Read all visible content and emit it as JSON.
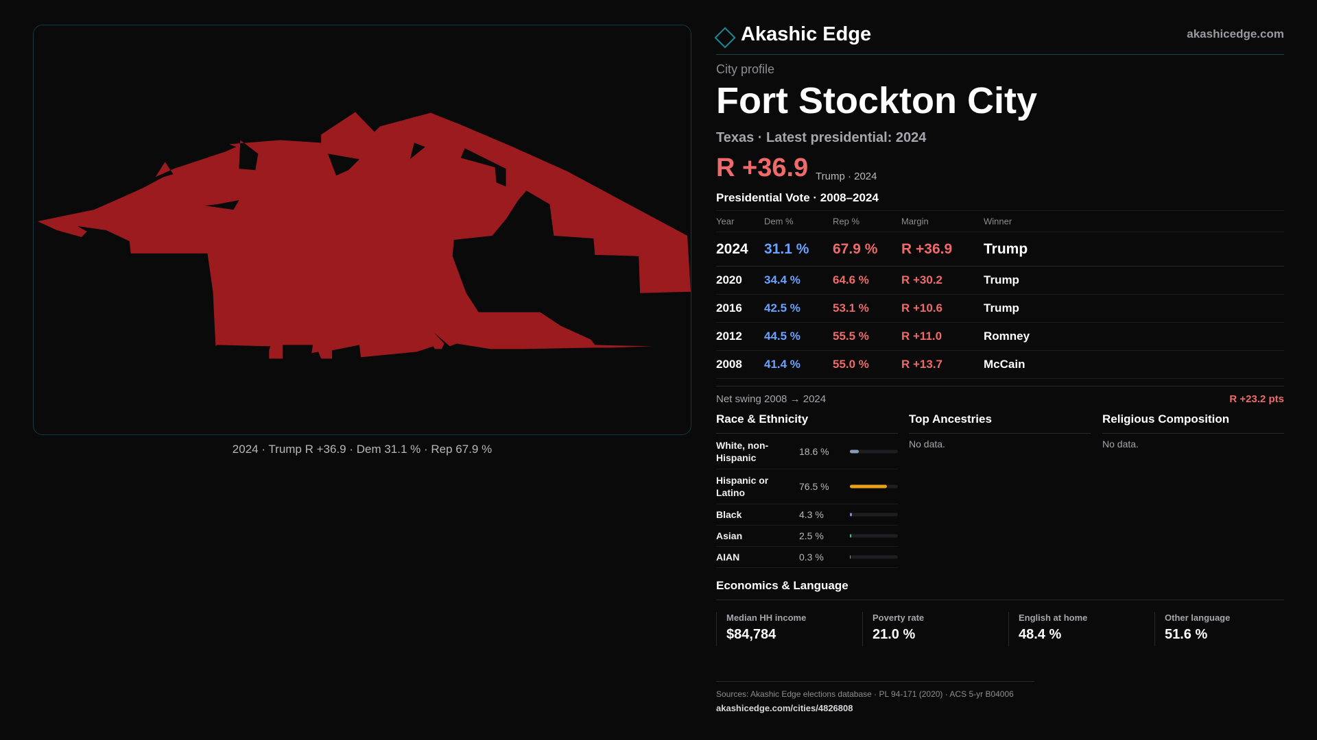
{
  "map": {
    "caption": "2024 · Trump R +36.9 · Dem 31.1 % · Rep 67.9 %",
    "fill_color": "#9b1b1e"
  },
  "brand": {
    "name": "Akashic Edge",
    "url": "akashicedge.com",
    "icon": "diamond-icon",
    "accent": "#1a8a96"
  },
  "profile": {
    "kicker": "City profile",
    "title": "Fort Stockton City",
    "subtitle": "Texas · Latest presidential: 2024",
    "margin": "R +36.9",
    "margin_note": "Trump · 2024"
  },
  "vote": {
    "heading": "Presidential Vote · 2008–2024",
    "columns": [
      "Year",
      "Dem %",
      "Rep %",
      "Margin",
      "Winner"
    ],
    "rows": [
      {
        "year": "2024",
        "dem": "31.1 %",
        "rep": "67.9 %",
        "margin": "R +36.9",
        "winner": "Trump"
      },
      {
        "year": "2020",
        "dem": "34.4 %",
        "rep": "64.6 %",
        "margin": "R +30.2",
        "winner": "Trump"
      },
      {
        "year": "2016",
        "dem": "42.5 %",
        "rep": "53.1 %",
        "margin": "R +10.6",
        "winner": "Trump"
      },
      {
        "year": "2012",
        "dem": "44.5 %",
        "rep": "55.5 %",
        "margin": "R +11.0",
        "winner": "Romney"
      },
      {
        "year": "2008",
        "dem": "41.4 %",
        "rep": "55.0 %",
        "margin": "R +13.7",
        "winner": "McCain"
      }
    ],
    "swing_label": "Net swing 2008 → 2024",
    "swing_value": "R +23.2 pts",
    "colors": {
      "dem": "#6aa3ff",
      "rep": "#f06a6a"
    }
  },
  "race": {
    "heading": "Race & Ethnicity",
    "rows": [
      {
        "label": "White, non-Hispanic",
        "pct": "18.6 %",
        "value": 18.6,
        "color": "#8a9bb5"
      },
      {
        "label": "Hispanic or Latino",
        "pct": "76.5 %",
        "value": 76.5,
        "color": "#e8a21a"
      },
      {
        "label": "Black",
        "pct": "4.3 %",
        "value": 4.3,
        "color": "#8b7cf0"
      },
      {
        "label": "Asian",
        "pct": "2.5 %",
        "value": 2.5,
        "color": "#2ec7a5"
      },
      {
        "label": "AIAN",
        "pct": "0.3 %",
        "value": 0.3,
        "color": "#e07a3a"
      }
    ]
  },
  "ancestries": {
    "heading": "Top Ancestries",
    "empty": "No data."
  },
  "religion": {
    "heading": "Religious Composition",
    "empty": "No data."
  },
  "economics": {
    "heading": "Economics & Language",
    "stats": [
      {
        "label": "Median HH income",
        "value": "$84,784"
      },
      {
        "label": "Poverty rate",
        "value": "21.0 %"
      },
      {
        "label": "English at home",
        "value": "48.4 %"
      },
      {
        "label": "Other language",
        "value": "51.6 %"
      }
    ]
  },
  "sources": {
    "text": "Sources: Akashic Edge elections database · PL 94-171 (2020) · ACS 5-yr B04006",
    "link": "akashicedge.com/cities/4826808"
  }
}
